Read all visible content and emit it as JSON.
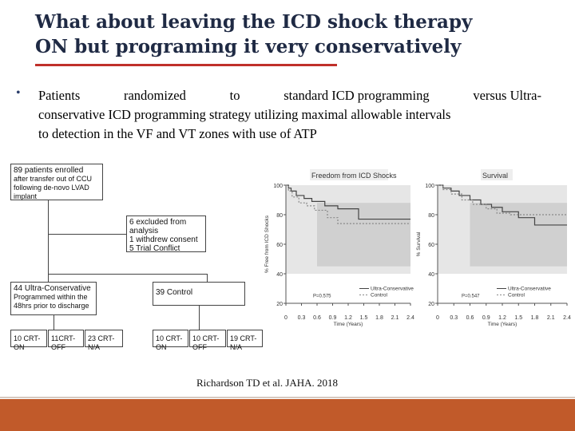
{
  "slide": {
    "title_line1": "What about leaving the ICD shock therapy",
    "title_line2": "ON but programing it very conservatively",
    "bullet_words": [
      "Patients",
      "randomized",
      "to",
      "standard ICD programming",
      "versus Ultra-"
    ],
    "bullet_rest_line2": "conservative ICD programming strategy utilizing maximal allowable intervals",
    "bullet_rest_line3": "to detection in the VF and VT zones with use of ATP",
    "citation": "Richardson TD et al. JAHA. 2018"
  },
  "flowchart": {
    "enrolled": [
      "89 patients enrolled",
      "after transfer out of CCU",
      "following de-novo LVAD implant"
    ],
    "excluded": [
      "6 excluded from analysis",
      "1 withdrew consent",
      "5 Trial Conflict"
    ],
    "ultra": [
      "44 Ultra-Conservative",
      "Programmed within the",
      "48hrs prior to discharge"
    ],
    "control": "39 Control",
    "ultra_groups": [
      "10 CRT-ON",
      "11CRT-OFF",
      "23 CRT-N/A"
    ],
    "control_groups": [
      "10 CRT-ON",
      "10 CRT-OFF",
      "19 CRT-N/A"
    ]
  },
  "chart_data": [
    {
      "type": "line",
      "title": "Freedom from ICD Shocks",
      "ylabel": "% Free from ICD Shocks",
      "xlabel": "Time (Years)",
      "xlim": [
        0,
        2.4
      ],
      "ylim": [
        20,
        100
      ],
      "xticks": [
        "0",
        "0.3",
        "0.6",
        "0.9",
        "1.2",
        "1.5",
        "1.8",
        "2.1",
        "2.4"
      ],
      "yticks": [
        "100",
        "80",
        "60",
        "40",
        "20"
      ],
      "pvalue": "P=0.575",
      "legend": [
        "Ultra-Conservative",
        "Control"
      ],
      "series": [
        {
          "name": "Ultra-Conservative",
          "x": [
            0,
            0.05,
            0.1,
            0.2,
            0.35,
            0.5,
            0.75,
            1.0,
            1.2,
            1.4,
            2.4
          ],
          "y": [
            100,
            98,
            96,
            93,
            91,
            89,
            86,
            84,
            84,
            77,
            77
          ]
        },
        {
          "name": "Control",
          "x": [
            0,
            0.05,
            0.12,
            0.25,
            0.4,
            0.55,
            0.8,
            1.0,
            2.4
          ],
          "y": [
            100,
            96,
            92,
            88,
            86,
            83,
            78,
            74,
            74
          ]
        }
      ]
    },
    {
      "type": "line",
      "title": "Survival",
      "ylabel": "% Survival",
      "xlabel": "Time (Years)",
      "xlim": [
        0,
        2.4
      ],
      "ylim": [
        20,
        100
      ],
      "xticks": [
        "0",
        "0.3",
        "0.6",
        "0.9",
        "1.2",
        "1.5",
        "1.8",
        "2.1",
        "2.4"
      ],
      "yticks": [
        "100",
        "80",
        "60",
        "40",
        "20"
      ],
      "pvalue": "P=0.547",
      "legend": [
        "Ultra-Conservative",
        "Control"
      ],
      "series": [
        {
          "name": "Ultra-Conservative",
          "x": [
            0,
            0.1,
            0.25,
            0.4,
            0.6,
            0.8,
            1.0,
            1.2,
            1.5,
            1.8,
            2.4
          ],
          "y": [
            100,
            98,
            96,
            93,
            90,
            87,
            85,
            82,
            78,
            73,
            73
          ]
        },
        {
          "name": "Control",
          "x": [
            0,
            0.1,
            0.25,
            0.45,
            0.65,
            0.9,
            1.1,
            1.35,
            2.4
          ],
          "y": [
            100,
            97,
            94,
            90,
            87,
            84,
            81,
            80,
            80
          ]
        }
      ]
    }
  ]
}
